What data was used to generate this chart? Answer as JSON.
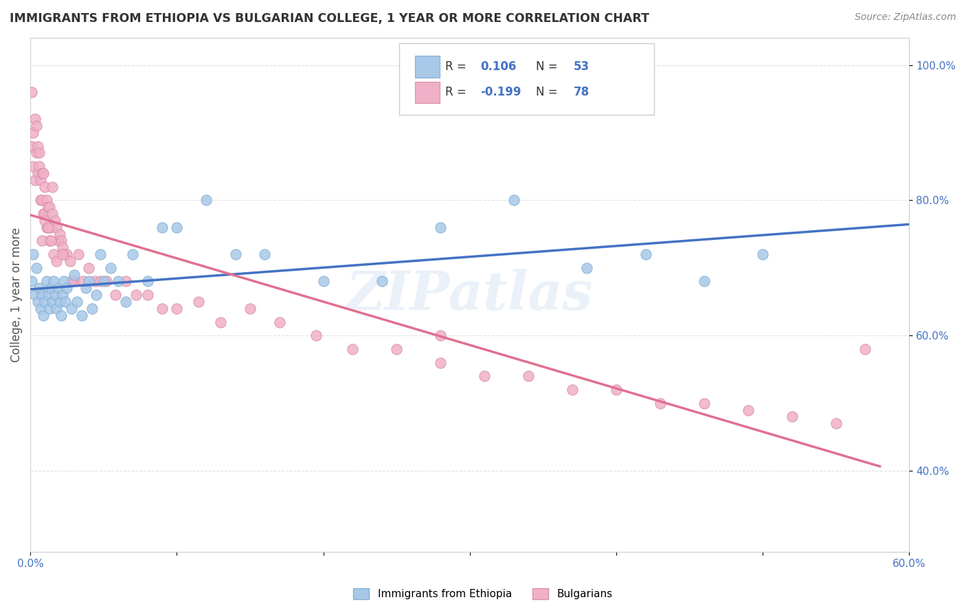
{
  "title": "IMMIGRANTS FROM ETHIOPIA VS BULGARIAN COLLEGE, 1 YEAR OR MORE CORRELATION CHART",
  "source_text": "Source: ZipAtlas.com",
  "ylabel": "College, 1 year or more",
  "xlim": [
    0.0,
    0.6
  ],
  "ylim": [
    0.28,
    1.04
  ],
  "xticks": [
    0.0,
    0.1,
    0.2,
    0.3,
    0.4,
    0.5,
    0.6
  ],
  "xticklabels": [
    "0.0%",
    "",
    "",
    "",
    "",
    "",
    "60.0%"
  ],
  "yticks": [
    0.4,
    0.6,
    0.8,
    1.0
  ],
  "yticklabels": [
    "40.0%",
    "60.0%",
    "80.0%",
    "100.0%"
  ],
  "eth_color": "#a8c8e8",
  "eth_edge": "#85afd4",
  "eth_line_color": "#4472c4",
  "bul_color": "#f0b0c8",
  "bul_edge": "#d890a8",
  "bul_line_color": "#e07090",
  "legend_box_color": "#4472c4",
  "grid_color": "#e0e0e0",
  "watermark": "ZIPatlas",
  "background_color": "#ffffff",
  "eth_x": [
    0.001,
    0.002,
    0.003,
    0.004,
    0.005,
    0.006,
    0.007,
    0.008,
    0.009,
    0.01,
    0.011,
    0.012,
    0.013,
    0.014,
    0.015,
    0.016,
    0.017,
    0.018,
    0.019,
    0.02,
    0.021,
    0.022,
    0.023,
    0.024,
    0.025,
    0.028,
    0.03,
    0.032,
    0.035,
    0.038,
    0.04,
    0.042,
    0.045,
    0.048,
    0.05,
    0.055,
    0.06,
    0.065,
    0.07,
    0.08,
    0.09,
    0.1,
    0.12,
    0.14,
    0.16,
    0.2,
    0.24,
    0.28,
    0.33,
    0.38,
    0.42,
    0.46,
    0.5
  ],
  "eth_y": [
    0.68,
    0.72,
    0.66,
    0.7,
    0.65,
    0.67,
    0.64,
    0.66,
    0.63,
    0.65,
    0.68,
    0.66,
    0.64,
    0.67,
    0.65,
    0.68,
    0.66,
    0.64,
    0.67,
    0.65,
    0.63,
    0.66,
    0.68,
    0.65,
    0.67,
    0.64,
    0.69,
    0.65,
    0.63,
    0.67,
    0.68,
    0.64,
    0.66,
    0.72,
    0.68,
    0.7,
    0.68,
    0.65,
    0.72,
    0.68,
    0.76,
    0.76,
    0.8,
    0.72,
    0.72,
    0.68,
    0.68,
    0.76,
    0.8,
    0.7,
    0.72,
    0.68,
    0.72
  ],
  "bul_x": [
    0.001,
    0.001,
    0.002,
    0.002,
    0.003,
    0.003,
    0.004,
    0.004,
    0.005,
    0.005,
    0.006,
    0.006,
    0.007,
    0.007,
    0.008,
    0.008,
    0.009,
    0.009,
    0.01,
    0.01,
    0.011,
    0.011,
    0.012,
    0.012,
    0.013,
    0.013,
    0.014,
    0.015,
    0.015,
    0.016,
    0.017,
    0.018,
    0.019,
    0.02,
    0.021,
    0.022,
    0.023,
    0.025,
    0.027,
    0.03,
    0.033,
    0.036,
    0.04,
    0.044,
    0.048,
    0.052,
    0.058,
    0.065,
    0.072,
    0.08,
    0.09,
    0.1,
    0.115,
    0.13,
    0.15,
    0.17,
    0.195,
    0.22,
    0.25,
    0.28,
    0.31,
    0.34,
    0.37,
    0.4,
    0.43,
    0.46,
    0.49,
    0.52,
    0.55,
    0.57,
    0.008,
    0.01,
    0.012,
    0.014,
    0.018,
    0.022,
    0.028,
    0.28
  ],
  "bul_y": [
    0.88,
    0.96,
    0.9,
    0.85,
    0.92,
    0.83,
    0.87,
    0.91,
    0.84,
    0.88,
    0.85,
    0.87,
    0.8,
    0.83,
    0.8,
    0.84,
    0.78,
    0.84,
    0.78,
    0.82,
    0.76,
    0.8,
    0.76,
    0.79,
    0.74,
    0.79,
    0.76,
    0.78,
    0.82,
    0.72,
    0.77,
    0.76,
    0.74,
    0.75,
    0.74,
    0.73,
    0.72,
    0.72,
    0.71,
    0.68,
    0.72,
    0.68,
    0.7,
    0.68,
    0.68,
    0.68,
    0.66,
    0.68,
    0.66,
    0.66,
    0.64,
    0.64,
    0.65,
    0.62,
    0.64,
    0.62,
    0.6,
    0.58,
    0.58,
    0.56,
    0.54,
    0.54,
    0.52,
    0.52,
    0.5,
    0.5,
    0.49,
    0.48,
    0.47,
    0.58,
    0.74,
    0.77,
    0.76,
    0.74,
    0.71,
    0.72,
    0.68,
    0.6
  ]
}
